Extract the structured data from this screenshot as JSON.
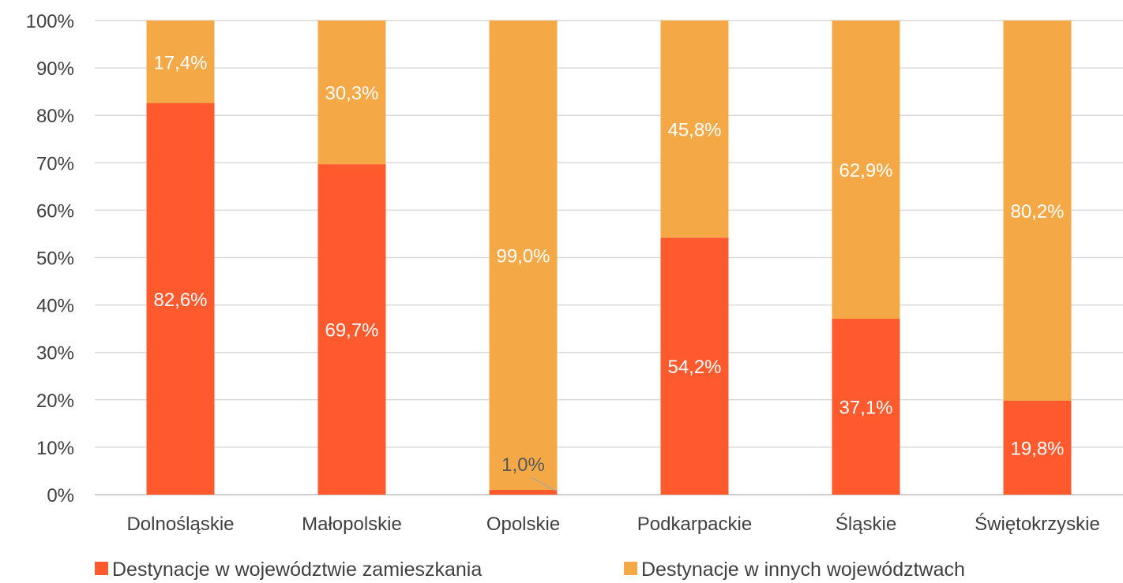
{
  "chart_data": {
    "type": "bar",
    "stacked": true,
    "percent": true,
    "title": "",
    "xlabel": "",
    "ylabel": "",
    "ylim": [
      0,
      100
    ],
    "yticks": [
      "0%",
      "10%",
      "20%",
      "30%",
      "40%",
      "50%",
      "60%",
      "70%",
      "80%",
      "90%",
      "100%"
    ],
    "grid": true,
    "legend": "bottom",
    "categories": [
      "Dolnośląskie",
      "Małopolskie",
      "Opolskie",
      "Podkarpackie",
      "Śląskie",
      "Świętokrzyskie"
    ],
    "series": [
      {
        "name": "Destynacje w województwie zamieszkania",
        "color": "#ff5a2d",
        "values": [
          82.6,
          69.7,
          1.0,
          54.2,
          37.1,
          19.8
        ],
        "labels": [
          "82,6%",
          "69,7%",
          "1,0%",
          "54,2%",
          "37,1%",
          "19,8%"
        ]
      },
      {
        "name": "Destynacje w innych województwach",
        "color": "#f4a946",
        "values": [
          17.4,
          30.3,
          99.0,
          45.8,
          62.9,
          80.2
        ],
        "labels": [
          "17,4%",
          "30,3%",
          "99,0%",
          "45,8%",
          "62,9%",
          "80,2%"
        ]
      }
    ]
  }
}
